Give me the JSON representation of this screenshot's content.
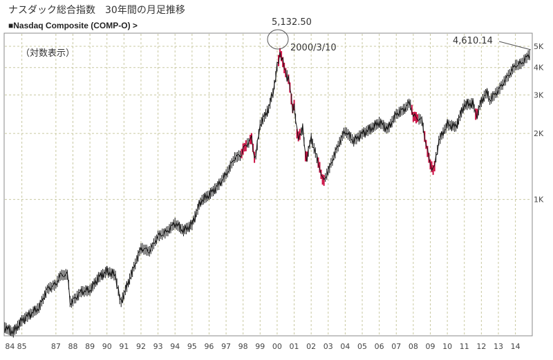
{
  "title": "ナスダック総合指数　30年間の月足推移",
  "subtitle": "■Nasdaq Composite (COMP-O)  >",
  "note": "（対数表示）",
  "colors": {
    "up": "#111111",
    "down": "#cc1144",
    "grid": "#c8c8a0",
    "frame": "#888888"
  },
  "annotations": {
    "peak_value": "5,132.50",
    "peak_date": "2000/3/10",
    "last_value": "4,610.14"
  },
  "chart_data": {
    "type": "line",
    "yscale": "log",
    "ylim": [
      240,
      5700
    ],
    "xlim": [
      1984.0,
      2014.95
    ],
    "grid": true,
    "x_ticks": [
      {
        "label": "84",
        "x": 1984.3
      },
      {
        "label": "85",
        "x": 1985.0
      },
      {
        "label": "87",
        "x": 1987.0
      },
      {
        "label": "88",
        "x": 1988.0
      },
      {
        "label": "89",
        "x": 1989.0
      },
      {
        "label": "90",
        "x": 1990.0
      },
      {
        "label": "91",
        "x": 1991.0
      },
      {
        "label": "92",
        "x": 1992.0
      },
      {
        "label": "93",
        "x": 1993.0
      },
      {
        "label": "94",
        "x": 1994.0
      },
      {
        "label": "95",
        "x": 1995.0
      },
      {
        "label": "96",
        "x": 1996.0
      },
      {
        "label": "97",
        "x": 1997.0
      },
      {
        "label": "98",
        "x": 1998.0
      },
      {
        "label": "99",
        "x": 1999.0
      },
      {
        "label": "00",
        "x": 2000.0
      },
      {
        "label": "01",
        "x": 2001.0
      },
      {
        "label": "02",
        "x": 2002.0
      },
      {
        "label": "03",
        "x": 2003.0
      },
      {
        "label": "04",
        "x": 2004.0
      },
      {
        "label": "05",
        "x": 2005.0
      },
      {
        "label": "06",
        "x": 2006.0
      },
      {
        "label": "07",
        "x": 2007.0
      },
      {
        "label": "08",
        "x": 2008.0
      },
      {
        "label": "09",
        "x": 2009.0
      },
      {
        "label": "10",
        "x": 2010.0
      },
      {
        "label": "11",
        "x": 2011.0
      },
      {
        "label": "12",
        "x": 2012.0
      },
      {
        "label": "13",
        "x": 2013.0
      },
      {
        "label": "14",
        "x": 2014.0
      }
    ],
    "y_ticks": [
      {
        "label": "1K",
        "value": 1000
      },
      {
        "label": "2K",
        "value": 2000
      },
      {
        "label": "3K",
        "value": 3000
      },
      {
        "label": "4K",
        "value": 4000
      },
      {
        "label": "5K",
        "value": 5000
      }
    ],
    "points": [
      [
        1984.0,
        260
      ],
      [
        1984.5,
        248
      ],
      [
        1985.0,
        280
      ],
      [
        1985.5,
        300
      ],
      [
        1986.0,
        320
      ],
      [
        1986.5,
        390
      ],
      [
        1987.0,
        410
      ],
      [
        1987.25,
        450
      ],
      [
        1987.7,
        455
      ],
      [
        1987.85,
        330
      ],
      [
        1988.0,
        345
      ],
      [
        1988.5,
        380
      ],
      [
        1989.0,
        385
      ],
      [
        1989.5,
        440
      ],
      [
        1990.0,
        470
      ],
      [
        1990.5,
        450
      ],
      [
        1990.8,
        335
      ],
      [
        1991.0,
        370
      ],
      [
        1991.5,
        470
      ],
      [
        1992.0,
        600
      ],
      [
        1992.5,
        580
      ],
      [
        1993.0,
        680
      ],
      [
        1993.5,
        710
      ],
      [
        1994.0,
        780
      ],
      [
        1994.5,
        720
      ],
      [
        1995.0,
        770
      ],
      [
        1995.5,
        980
      ],
      [
        1996.0,
        1050
      ],
      [
        1996.5,
        1150
      ],
      [
        1997.0,
        1300
      ],
      [
        1997.5,
        1550
      ],
      [
        1997.9,
        1600
      ],
      [
        1998.0,
        1700
      ],
      [
        1998.5,
        1900
      ],
      [
        1998.7,
        1500
      ],
      [
        1999.0,
        2200
      ],
      [
        1999.5,
        2600
      ],
      [
        1999.8,
        3200
      ],
      [
        2000.0,
        4000
      ],
      [
        2000.2,
        4800
      ],
      [
        2000.3,
        4300
      ],
      [
        2000.5,
        3800
      ],
      [
        2000.7,
        3500
      ],
      [
        2000.9,
        2600
      ],
      [
        2001.0,
        2700
      ],
      [
        2001.2,
        1900
      ],
      [
        2001.5,
        2100
      ],
      [
        2001.7,
        1500
      ],
      [
        2002.0,
        1900
      ],
      [
        2002.5,
        1400
      ],
      [
        2002.7,
        1200
      ],
      [
        2003.0,
        1350
      ],
      [
        2003.5,
        1700
      ],
      [
        2003.9,
        2000
      ],
      [
        2004.0,
        2050
      ],
      [
        2004.5,
        1850
      ],
      [
        2005.0,
        2000
      ],
      [
        2005.5,
        2100
      ],
      [
        2006.0,
        2250
      ],
      [
        2006.5,
        2100
      ],
      [
        2007.0,
        2450
      ],
      [
        2007.5,
        2600
      ],
      [
        2007.8,
        2780
      ],
      [
        2008.0,
        2400
      ],
      [
        2008.5,
        2300
      ],
      [
        2008.8,
        1700
      ],
      [
        2009.0,
        1450
      ],
      [
        2009.2,
        1350
      ],
      [
        2009.5,
        1850
      ],
      [
        2010.0,
        2200
      ],
      [
        2010.5,
        2150
      ],
      [
        2011.0,
        2700
      ],
      [
        2011.5,
        2750
      ],
      [
        2011.7,
        2400
      ],
      [
        2012.0,
        2800
      ],
      [
        2012.3,
        3100
      ],
      [
        2012.5,
        2850
      ],
      [
        2013.0,
        3150
      ],
      [
        2013.5,
        3600
      ],
      [
        2014.0,
        4100
      ],
      [
        2014.3,
        4150
      ],
      [
        2014.6,
        4400
      ],
      [
        2014.85,
        4610.14
      ]
    ],
    "red_segments": [
      [
        1997.9,
        1998.2
      ],
      [
        1998.4,
        1998.7
      ],
      [
        2000.0,
        2000.5
      ],
      [
        2000.6,
        2001.0
      ],
      [
        2001.1,
        2001.4
      ],
      [
        2001.6,
        2001.8
      ],
      [
        2002.4,
        2002.8
      ],
      [
        2007.9,
        2008.3
      ],
      [
        2008.6,
        2009.25
      ],
      [
        2011.6,
        2011.8
      ]
    ]
  }
}
